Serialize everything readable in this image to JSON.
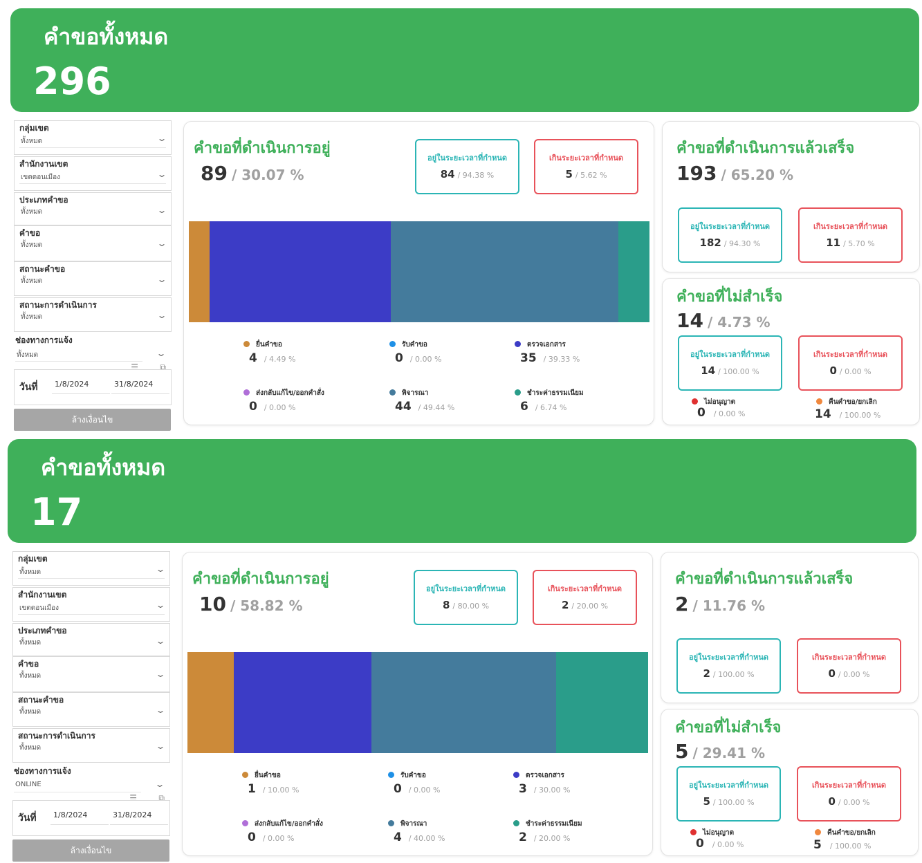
{
  "sections": [
    {
      "banner": {
        "title": "คำขอทั้งหมด",
        "total": "296"
      },
      "filters": [
        {
          "label": "กลุ่มเขต",
          "value": "ทั้งหมด"
        },
        {
          "label": "สำนักงานเขต",
          "value": "เขตดอนเมือง"
        },
        {
          "label": "ประเภทคำขอ",
          "value": "ทั้งหมด"
        },
        {
          "label": "คำขอ",
          "value": "ทั้งหมด"
        },
        {
          "label": "สถานะคำขอ",
          "value": "ทั้งหมด"
        },
        {
          "label": "สถานะการดำเนินการ",
          "value": "ทั้งหมด"
        },
        {
          "label": "ช่องทางการแจ้ง",
          "value": "ทั้งหมด"
        }
      ],
      "date": {
        "label": "วันที่",
        "from": "1/8/2024",
        "to": "31/8/2024"
      },
      "clear_label": "ล้างเงื่อนไข",
      "in_progress": {
        "title": "คำขอที่ดำเนินการอยู่",
        "count": "89",
        "pct": "/ 30.07 %",
        "ontime": {
          "label": "อยู่ในระยะเวลาที่กำหนด",
          "count": "84",
          "pct": "/ 94.38 %"
        },
        "late": {
          "label": "เกินระยะเวลาที่กำหนด",
          "count": "5",
          "pct": "/ 5.62 %"
        },
        "legend": [
          {
            "label": "ยื่นคำขอ",
            "count": "4",
            "pct": "/ 4.49 %"
          },
          {
            "label": "รับคำขอ",
            "count": "0",
            "pct": "/ 0.00 %"
          },
          {
            "label": "ตรวจเอกสาร",
            "count": "35",
            "pct": "/ 39.33 %"
          },
          {
            "label": "ส่งกลับแก้ไข/ออกคำสั่ง",
            "count": "0",
            "pct": "/ 0.00 %"
          },
          {
            "label": "พิจารณา",
            "count": "44",
            "pct": "/ 49.44 %"
          },
          {
            "label": "ชำระค่าธรรมเนียม",
            "count": "6",
            "pct": "/ 6.74 %"
          }
        ]
      },
      "done": {
        "title": "คำขอที่ดำเนินการแล้วเสร็จ",
        "count": "193",
        "pct": "/ 65.20 %",
        "ontime": {
          "label": "อยู่ในระยะเวลาที่กำหนด",
          "count": "182",
          "pct": "/ 94.30 %"
        },
        "late": {
          "label": "เกินระยะเวลาที่กำหนด",
          "count": "11",
          "pct": "/ 5.70 %"
        }
      },
      "failed": {
        "title": "คำขอที่ไม่สำเร็จ",
        "count": "14",
        "pct": "/ 4.73 %",
        "ontime": {
          "label": "อยู่ในระยะเวลาที่กำหนด",
          "count": "14",
          "pct": "/ 100.00 %"
        },
        "late": {
          "label": "เกินระยะเวลาที่กำหนด",
          "count": "0",
          "pct": "/ 0.00 %"
        },
        "denied": {
          "label": "ไม่อนุญาต",
          "count": "0",
          "pct": "/ 0.00 %"
        },
        "cancelled": {
          "label": "คืนคำขอ/ยกเลิก",
          "count": "14",
          "pct": "/ 100.00 %"
        }
      }
    },
    {
      "banner": {
        "title": "คำขอทั้งหมด",
        "total": "17"
      },
      "filters": [
        {
          "label": "กลุ่มเขต",
          "value": "ทั้งหมด"
        },
        {
          "label": "สำนักงานเขต",
          "value": "เขตดอนเมือง"
        },
        {
          "label": "ประเภทคำขอ",
          "value": "ทั้งหมด"
        },
        {
          "label": "คำขอ",
          "value": "ทั้งหมด"
        },
        {
          "label": "สถานะคำขอ",
          "value": "ทั้งหมด"
        },
        {
          "label": "สถานะการดำเนินการ",
          "value": "ทั้งหมด"
        },
        {
          "label": "ช่องทางการแจ้ง",
          "value": "ONLINE"
        }
      ],
      "date": {
        "label": "วันที่",
        "from": "1/8/2024",
        "to": "31/8/2024"
      },
      "clear_label": "ล้างเงื่อนไข",
      "in_progress": {
        "title": "คำขอที่ดำเนินการอยู่",
        "count": "10",
        "pct": "/ 58.82 %",
        "ontime": {
          "label": "อยู่ในระยะเวลาที่กำหนด",
          "count": "8",
          "pct": "/ 80.00 %"
        },
        "late": {
          "label": "เกินระยะเวลาที่กำหนด",
          "count": "2",
          "pct": "/ 20.00 %"
        },
        "legend": [
          {
            "label": "ยื่นคำขอ",
            "count": "1",
            "pct": "/ 10.00 %"
          },
          {
            "label": "รับคำขอ",
            "count": "0",
            "pct": "/ 0.00 %"
          },
          {
            "label": "ตรวจเอกสาร",
            "count": "3",
            "pct": "/ 30.00 %"
          },
          {
            "label": "ส่งกลับแก้ไข/ออกคำสั่ง",
            "count": "0",
            "pct": "/ 0.00 %"
          },
          {
            "label": "พิจารณา",
            "count": "4",
            "pct": "/ 40.00 %"
          },
          {
            "label": "ชำระค่าธรรมเนียม",
            "count": "2",
            "pct": "/ 20.00 %"
          }
        ]
      },
      "done": {
        "title": "คำขอที่ดำเนินการแล้วเสร็จ",
        "count": "2",
        "pct": "/ 11.76 %",
        "ontime": {
          "label": "อยู่ในระยะเวลาที่กำหนด",
          "count": "2",
          "pct": "/ 100.00 %"
        },
        "late": {
          "label": "เกินระยะเวลาที่กำหนด",
          "count": "0",
          "pct": "/ 0.00 %"
        }
      },
      "failed": {
        "title": "คำขอที่ไม่สำเร็จ",
        "count": "5",
        "pct": "/ 29.41 %",
        "ontime": {
          "label": "อยู่ในระยะเวลาที่กำหนด",
          "count": "5",
          "pct": "/ 100.00 %"
        },
        "late": {
          "label": "เกินระยะเวลาที่กำหนด",
          "count": "0",
          "pct": "/ 0.00 %"
        },
        "denied": {
          "label": "ไม่อนุญาต",
          "count": "0",
          "pct": "/ 0.00 %"
        },
        "cancelled": {
          "label": "คืนคำขอ/ยกเลิก",
          "count": "5",
          "pct": "/ 100.00 %"
        }
      }
    }
  ],
  "chart_data": [
    {
      "type": "bar",
      "stacked": true,
      "orientation": "horizontal",
      "categories": [
        "ยื่นคำขอ",
        "รับคำขอ",
        "ตรวจเอกสาร",
        "ส่งกลับแก้ไข/ออกคำสั่ง",
        "พิจารณา",
        "ชำระค่าธรรมเนียม"
      ],
      "values": [
        4,
        0,
        35,
        0,
        44,
        6
      ],
      "colors": [
        "#cc8a39",
        "#1e90e6",
        "#3c3cc6",
        "#b06fd8",
        "#447b9c",
        "#2a9d8a"
      ]
    },
    {
      "type": "bar",
      "stacked": true,
      "orientation": "horizontal",
      "categories": [
        "ยื่นคำขอ",
        "รับคำขอ",
        "ตรวจเอกสาร",
        "ส่งกลับแก้ไข/ออกคำสั่ง",
        "พิจารณา",
        "ชำระค่าธรรมเนียม"
      ],
      "values": [
        1,
        0,
        3,
        0,
        4,
        2
      ],
      "colors": [
        "#cc8a39",
        "#1e90e6",
        "#3c3cc6",
        "#b06fd8",
        "#447b9c",
        "#2a9d8a"
      ]
    }
  ],
  "colors": {
    "brand_green": "#3fb05a",
    "ontime": "#2bb5b5",
    "late": "#e8525a",
    "denied": "#e03131",
    "cancelled": "#f0883e"
  }
}
